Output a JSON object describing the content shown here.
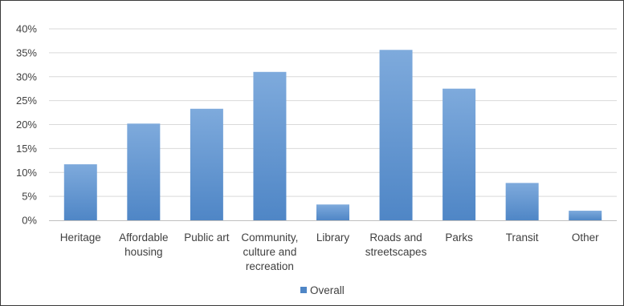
{
  "chart_data": {
    "type": "bar",
    "categories": [
      [
        "Heritage"
      ],
      [
        "Affordable",
        "housing"
      ],
      [
        "Public art"
      ],
      [
        "Community,",
        "culture and",
        "recreation"
      ],
      [
        "Library"
      ],
      [
        "Roads and",
        "streetscapes"
      ],
      [
        "Parks"
      ],
      [
        "Transit"
      ],
      [
        "Other"
      ]
    ],
    "series": [
      {
        "name": "Overall",
        "values": [
          11.7,
          20.2,
          23.3,
          31.0,
          3.3,
          35.6,
          27.5,
          7.8,
          2.0
        ]
      }
    ],
    "ylim": [
      0,
      40
    ],
    "yticks": [
      "0%",
      "5%",
      "10%",
      "15%",
      "20%",
      "25%",
      "30%",
      "35%",
      "40%"
    ],
    "ytick_values": [
      0,
      5,
      10,
      15,
      20,
      25,
      30,
      35,
      40
    ],
    "grid": true,
    "legend_position": "bottom",
    "colors": {
      "bar_top": "#7eaadc",
      "bar_bottom": "#4f86c6",
      "grid": "#d9d9d9",
      "axis": "#bfbfbf",
      "text": "#404040"
    }
  }
}
